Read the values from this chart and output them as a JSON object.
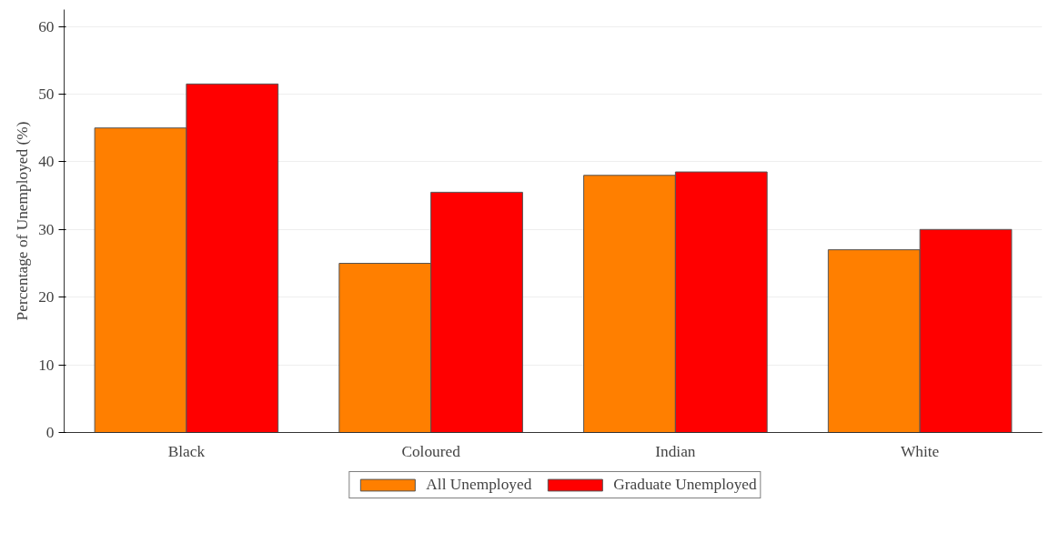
{
  "chart_data": {
    "type": "bar",
    "ylabel": "Percentage of Unemployed (%)",
    "categories": [
      "Black",
      "Coloured",
      "Indian",
      "White"
    ],
    "series": [
      {
        "name": "All Unemployed",
        "color": "#ff7f00",
        "values": [
          45,
          25,
          38,
          27
        ]
      },
      {
        "name": "Graduate Unemployed",
        "color": "#ff0000",
        "values": [
          51.5,
          35.5,
          38.5,
          30
        ]
      }
    ],
    "ylim": [
      0,
      62.5
    ],
    "yticks": [
      0,
      10,
      20,
      30,
      40,
      50,
      60
    ],
    "grid": "y",
    "legend": "bottom"
  }
}
